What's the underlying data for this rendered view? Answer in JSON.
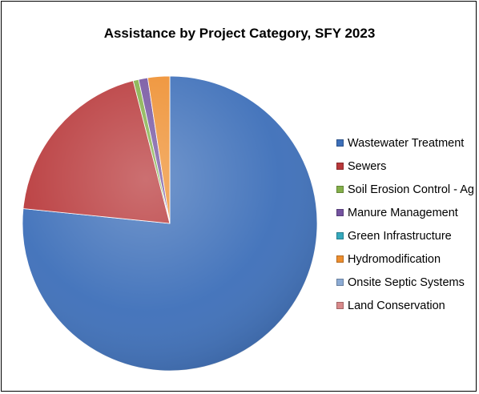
{
  "chart_data": {
    "type": "pie",
    "title": "Assistance by Project Category, SFY 2023",
    "legend_position": "right",
    "categories": [
      "Wastewater Treatment",
      "Sewers",
      "Soil Erosion Control - Ag",
      "Manure Management",
      "Green Infrastructure",
      "Hydromodification",
      "Onsite Septic Systems",
      "Land Conservation"
    ],
    "values": [
      76.6,
      19.4,
      0.6,
      1.0,
      0.0,
      2.4,
      0.0,
      0.0
    ],
    "unit": "percent",
    "colors": [
      "#3d6fb9",
      "#b8383a",
      "#84b04a",
      "#7453a0",
      "#35a9bd",
      "#ee8e2e",
      "#8cabd4",
      "#d8898a"
    ]
  }
}
